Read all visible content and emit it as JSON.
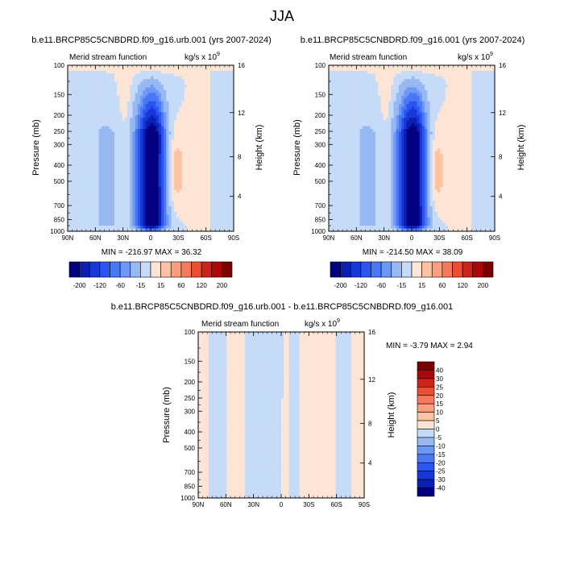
{
  "figure_title": "JJA",
  "plots": [
    {
      "title": "b.e11.BRCP85C5CNBDRD.f09_g16.urb.001 (yrs 2007-2024)",
      "left_label": "Merid stream function",
      "units_prefix": "kg/s x 10",
      "units_exp": "9",
      "ylabel": "Pressure (mb)",
      "y2label": "Height (km)",
      "minmax": "MIN = -216.97  MAX =  36.32"
    },
    {
      "title": "b.e11.BRCP85C5CNBDRD.f09_g16.001 (yrs 2007-2024)",
      "left_label": "Merid stream function",
      "units_prefix": "kg/s x 10",
      "units_exp": "9",
      "ylabel": "Pressure (mb)",
      "y2label": "Height (km)",
      "minmax": "MIN = -214.50  MAX =  38.09"
    },
    {
      "title": "b.e11.BRCP85C5CNBDRD.f09_g16.urb.001 - b.e11.BRCP85C5CNBDRD.f09_g16.001",
      "left_label": "Merid stream function",
      "units_prefix": "kg/s x 10",
      "units_exp": "9",
      "ylabel": "Pressure (mb)",
      "y2label": "Height (km)",
      "minmax": "MIN =  -3.79  MAX =   2.94"
    }
  ],
  "chart_data": [
    {
      "type": "heatmap",
      "title": "b.e11.BRCP85C5CNBDRD.f09_g16.urb.001 (yrs 2007-2024)",
      "xlabel": "",
      "ylabel": "Pressure (mb)",
      "y2label": "Height (km)",
      "x_ticks": [
        "90N",
        "60N",
        "30N",
        "0",
        "30S",
        "60S",
        "90S"
      ],
      "y_ticks": [
        "100",
        "150",
        "200",
        "250",
        "300",
        "400",
        "500",
        "700",
        "850",
        "1000"
      ],
      "y2_ticks": [
        "16",
        "12",
        "8",
        "4"
      ],
      "min": -216.97,
      "max": 36.32,
      "colorbar_levels": [
        "-200",
        "-120",
        "-60",
        "-15",
        "15",
        "60",
        "120",
        "200"
      ]
    },
    {
      "type": "heatmap",
      "title": "b.e11.BRCP85C5CNBDRD.f09_g16.001 (yrs 2007-2024)",
      "xlabel": "",
      "ylabel": "Pressure (mb)",
      "y2label": "Height (km)",
      "x_ticks": [
        "90N",
        "60N",
        "30N",
        "0",
        "30S",
        "60S",
        "90S"
      ],
      "y_ticks": [
        "100",
        "150",
        "200",
        "250",
        "300",
        "400",
        "500",
        "700",
        "850",
        "1000"
      ],
      "y2_ticks": [
        "16",
        "12",
        "8",
        "4"
      ],
      "min": -214.5,
      "max": 38.09,
      "colorbar_levels": [
        "-200",
        "-120",
        "-60",
        "-15",
        "15",
        "60",
        "120",
        "200"
      ]
    },
    {
      "type": "heatmap",
      "title": "b.e11.BRCP85C5CNBDRD.f09_g16.urb.001 - b.e11.BRCP85C5CNBDRD.f09_g16.001",
      "xlabel": "",
      "ylabel": "Pressure (mb)",
      "y2label": "Height (km)",
      "x_ticks": [
        "90N",
        "60N",
        "30N",
        "0",
        "30S",
        "60S",
        "90S"
      ],
      "y_ticks": [
        "100",
        "150",
        "200",
        "250",
        "300",
        "400",
        "500",
        "700",
        "850",
        "1000"
      ],
      "y2_ticks": [
        "16",
        "12",
        "8",
        "4"
      ],
      "min": -3.79,
      "max": 2.94,
      "colorbar_levels": [
        "40",
        "30",
        "25",
        "20",
        "15",
        "10",
        "5",
        "0",
        "-5",
        "-10",
        "-15",
        "-20",
        "-25",
        "-30",
        "-40"
      ]
    }
  ],
  "colors": {
    "palette_main": [
      "#000080",
      "#0b1fb0",
      "#1737d8",
      "#2a55f0",
      "#4878f5",
      "#6e98f5",
      "#97b8f2",
      "#c6dbf8",
      "#fde5d5",
      "#fcc2a3",
      "#f99f7e",
      "#f47a5b",
      "#ea4f34",
      "#cd2217",
      "#a8080a",
      "#7a0000"
    ],
    "palette_diff": [
      "#7a0000",
      "#a8080a",
      "#cd2217",
      "#ea4f34",
      "#f47a5b",
      "#f99f7e",
      "#fcc2a3",
      "#fde5d5",
      "#c6dbf8",
      "#97b8f2",
      "#6e98f5",
      "#4878f5",
      "#2a55f0",
      "#1737d8",
      "#0b1fb0",
      "#000080"
    ]
  }
}
